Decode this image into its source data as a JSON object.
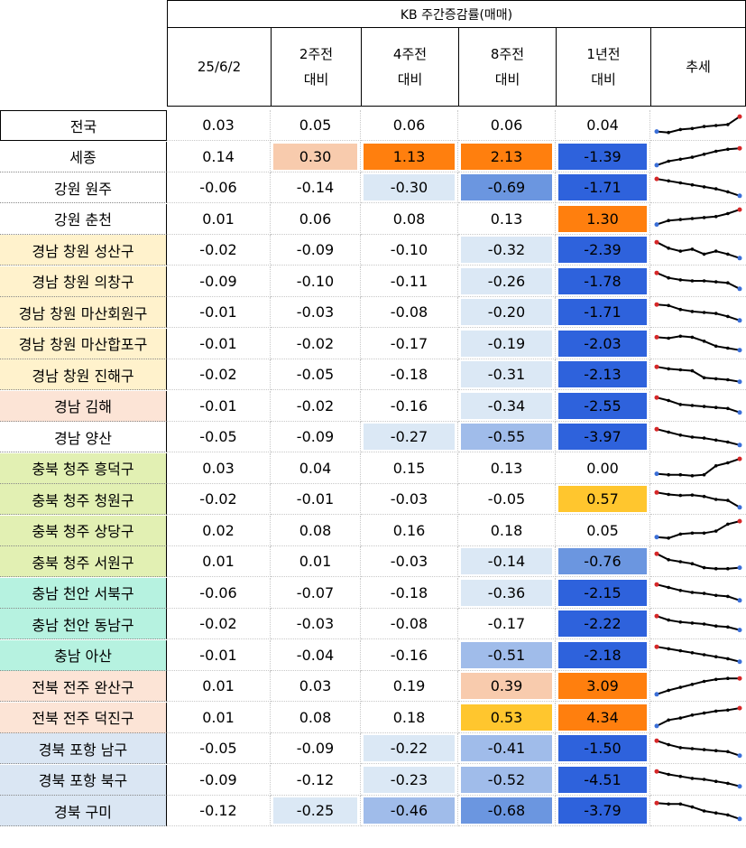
{
  "table": {
    "group_header": "KB 주간증감률(매매)",
    "columns": [
      {
        "line1": "25/6/2",
        "line2": ""
      },
      {
        "line1": "2주전",
        "line2": "대비"
      },
      {
        "line1": "4주전",
        "line2": "대비"
      },
      {
        "line1": "8주전",
        "line2": "대비"
      },
      {
        "line1": "1년전",
        "line2": "대비"
      },
      {
        "line1": "추세",
        "line2": ""
      }
    ],
    "rows": [
      {
        "name": "전국",
        "name_bg": "#ffffff",
        "values": [
          "0.03",
          "0.05",
          "0.06",
          "0.06",
          "0.04"
        ],
        "bgs": [
          "#ffffff",
          "#ffffff",
          "#ffffff",
          "#ffffff",
          "#ffffff"
        ],
        "trend": [
          0.2,
          0.15,
          0.3,
          0.35,
          0.45,
          0.5,
          0.55,
          0.95
        ]
      },
      {
        "name": "세종",
        "name_bg": "#ffffff",
        "values": [
          "0.14",
          "0.30",
          "1.13",
          "2.13",
          "-1.39"
        ],
        "bgs": [
          "#ffffff",
          "#f8cbad",
          "#ff7f0e",
          "#ff7f0e",
          "#2e62dc"
        ],
        "trend": [
          0.05,
          0.25,
          0.35,
          0.45,
          0.6,
          0.75,
          0.85,
          0.9
        ]
      },
      {
        "name": "강원 원주",
        "name_bg": "#ffffff",
        "values": [
          "-0.06",
          "-0.14",
          "-0.30",
          "-0.69",
          "-1.71"
        ],
        "bgs": [
          "#ffffff",
          "#ffffff",
          "#dbe8f5",
          "#6b96e0",
          "#2e62dc"
        ],
        "trend": [
          0.95,
          0.85,
          0.75,
          0.65,
          0.55,
          0.45,
          0.3,
          0.1
        ]
      },
      {
        "name": "강원 춘천",
        "name_bg": "#ffffff",
        "values": [
          "0.01",
          "0.06",
          "0.08",
          "0.13",
          "1.30"
        ],
        "bgs": [
          "#ffffff",
          "#ffffff",
          "#ffffff",
          "#ffffff",
          "#ff7f0e"
        ],
        "trend": [
          0.2,
          0.4,
          0.45,
          0.5,
          0.55,
          0.6,
          0.75,
          0.95
        ]
      },
      {
        "name": "경남 창원 성산구",
        "name_bg": "#fff2cc",
        "values": [
          "-0.02",
          "-0.09",
          "-0.10",
          "-0.32",
          "-2.39"
        ],
        "bgs": [
          "#ffffff",
          "#ffffff",
          "#ffffff",
          "#dbe8f5",
          "#2e62dc"
        ],
        "trend": [
          0.9,
          0.6,
          0.45,
          0.55,
          0.3,
          0.45,
          0.3,
          0.1
        ]
      },
      {
        "name": "경남 창원 의창구",
        "name_bg": "#fff2cc",
        "values": [
          "-0.09",
          "-0.10",
          "-0.11",
          "-0.26",
          "-1.78"
        ],
        "bgs": [
          "#ffffff",
          "#ffffff",
          "#ffffff",
          "#dbe8f5",
          "#2e62dc"
        ],
        "trend": [
          0.9,
          0.65,
          0.55,
          0.5,
          0.5,
          0.45,
          0.4,
          0.1
        ]
      },
      {
        "name": "경남 창원 마산회원구",
        "name_bg": "#fff2cc",
        "values": [
          "-0.01",
          "-0.03",
          "-0.08",
          "-0.20",
          "-1.71"
        ],
        "bgs": [
          "#ffffff",
          "#ffffff",
          "#ffffff",
          "#dbe8f5",
          "#2e62dc"
        ],
        "trend": [
          0.9,
          0.85,
          0.65,
          0.55,
          0.5,
          0.45,
          0.3,
          0.1
        ]
      },
      {
        "name": "경남 창원 마산합포구",
        "name_bg": "#fff2cc",
        "values": [
          "-0.01",
          "-0.02",
          "-0.17",
          "-0.19",
          "-2.03"
        ],
        "bgs": [
          "#ffffff",
          "#ffffff",
          "#ffffff",
          "#dbe8f5",
          "#2e62dc"
        ],
        "trend": [
          0.8,
          0.75,
          0.85,
          0.8,
          0.6,
          0.35,
          0.25,
          0.15
        ]
      },
      {
        "name": "경남 창원 진해구",
        "name_bg": "#fff2cc",
        "values": [
          "-0.02",
          "-0.05",
          "-0.18",
          "-0.31",
          "-2.13"
        ],
        "bgs": [
          "#ffffff",
          "#ffffff",
          "#ffffff",
          "#dbe8f5",
          "#2e62dc"
        ],
        "trend": [
          0.9,
          0.8,
          0.75,
          0.7,
          0.35,
          0.3,
          0.25,
          0.15
        ]
      },
      {
        "name": "경남 김해",
        "name_bg": "#fce4d6",
        "values": [
          "-0.01",
          "-0.02",
          "-0.16",
          "-0.34",
          "-2.55"
        ],
        "bgs": [
          "#ffffff",
          "#ffffff",
          "#ffffff",
          "#dbe8f5",
          "#2e62dc"
        ],
        "trend": [
          0.9,
          0.75,
          0.55,
          0.5,
          0.45,
          0.4,
          0.35,
          0.15
        ]
      },
      {
        "name": "경남 양산",
        "name_bg": "#ffffff",
        "values": [
          "-0.05",
          "-0.09",
          "-0.27",
          "-0.55",
          "-3.97"
        ],
        "bgs": [
          "#ffffff",
          "#ffffff",
          "#dbe8f5",
          "#a0bcea",
          "#2e62dc"
        ],
        "trend": [
          0.9,
          0.75,
          0.6,
          0.5,
          0.45,
          0.35,
          0.25,
          0.1
        ]
      },
      {
        "name": "충북 청주 흥덕구",
        "name_bg": "#e2f0b3",
        "values": [
          "0.03",
          "0.04",
          "0.15",
          "0.13",
          "0.00"
        ],
        "bgs": [
          "#ffffff",
          "#ffffff",
          "#ffffff",
          "#ffffff",
          "#ffffff"
        ],
        "trend": [
          0.2,
          0.15,
          0.15,
          0.1,
          0.15,
          0.6,
          0.75,
          0.95
        ]
      },
      {
        "name": "충북 청주 청원구",
        "name_bg": "#e2f0b3",
        "values": [
          "-0.02",
          "-0.01",
          "-0.03",
          "-0.05",
          "0.57"
        ],
        "bgs": [
          "#ffffff",
          "#ffffff",
          "#ffffff",
          "#ffffff",
          "#ffc62e"
        ],
        "trend": [
          0.85,
          0.75,
          0.7,
          0.72,
          0.65,
          0.5,
          0.45,
          0.1
        ]
      },
      {
        "name": "충북 청주 상당구",
        "name_bg": "#e2f0b3",
        "values": [
          "0.02",
          "0.08",
          "0.16",
          "0.18",
          "0.05"
        ],
        "bgs": [
          "#ffffff",
          "#ffffff",
          "#ffffff",
          "#ffffff",
          "#ffffff"
        ],
        "trend": [
          0.15,
          0.1,
          0.3,
          0.35,
          0.35,
          0.45,
          0.8,
          0.95
        ]
      },
      {
        "name": "충북 청주 서원구",
        "name_bg": "#e2f0b3",
        "values": [
          "0.01",
          "0.01",
          "-0.03",
          "-0.14",
          "-0.76"
        ],
        "bgs": [
          "#ffffff",
          "#ffffff",
          "#ffffff",
          "#dbe8f5",
          "#6b96e0"
        ],
        "trend": [
          0.9,
          0.6,
          0.5,
          0.4,
          0.2,
          0.15,
          0.15,
          0.2
        ]
      },
      {
        "name": "충남 천안 서북구",
        "name_bg": "#b6f2e0",
        "values": [
          "-0.06",
          "-0.07",
          "-0.18",
          "-0.36",
          "-2.15"
        ],
        "bgs": [
          "#ffffff",
          "#ffffff",
          "#ffffff",
          "#dbe8f5",
          "#2e62dc"
        ],
        "trend": [
          0.9,
          0.75,
          0.6,
          0.5,
          0.45,
          0.35,
          0.3,
          0.1
        ]
      },
      {
        "name": "충남 천안 동남구",
        "name_bg": "#b6f2e0",
        "values": [
          "-0.02",
          "-0.03",
          "-0.08",
          "-0.17",
          "-2.22"
        ],
        "bgs": [
          "#ffffff",
          "#ffffff",
          "#ffffff",
          "#ffffff",
          "#2e62dc"
        ],
        "trend": [
          0.9,
          0.7,
          0.6,
          0.55,
          0.5,
          0.4,
          0.35,
          0.2
        ]
      },
      {
        "name": "충남 아산",
        "name_bg": "#b6f2e0",
        "values": [
          "-0.01",
          "-0.04",
          "-0.16",
          "-0.51",
          "-2.18"
        ],
        "bgs": [
          "#ffffff",
          "#ffffff",
          "#ffffff",
          "#a0bcea",
          "#2e62dc"
        ],
        "trend": [
          0.9,
          0.8,
          0.7,
          0.6,
          0.5,
          0.4,
          0.3,
          0.15
        ]
      },
      {
        "name": "전북 전주 완산구",
        "name_bg": "#fce4d6",
        "values": [
          "0.01",
          "0.03",
          "0.19",
          "0.39",
          "3.09"
        ],
        "bgs": [
          "#ffffff",
          "#ffffff",
          "#ffffff",
          "#f8cbad",
          "#ff7f0e"
        ],
        "trend": [
          0.1,
          0.3,
          0.45,
          0.6,
          0.75,
          0.85,
          0.9,
          0.9
        ]
      },
      {
        "name": "전북 전주 덕진구",
        "name_bg": "#fce4d6",
        "values": [
          "0.01",
          "0.08",
          "0.18",
          "0.53",
          "4.34"
        ],
        "bgs": [
          "#ffffff",
          "#ffffff",
          "#ffffff",
          "#ffc62e",
          "#ff7f0e"
        ],
        "trend": [
          0.05,
          0.35,
          0.45,
          0.6,
          0.7,
          0.8,
          0.85,
          0.95
        ]
      },
      {
        "name": "경북 포항 남구",
        "name_bg": "#dae6f3",
        "values": [
          "-0.05",
          "-0.09",
          "-0.22",
          "-0.41",
          "-1.50"
        ],
        "bgs": [
          "#ffffff",
          "#ffffff",
          "#dbe8f5",
          "#a0bcea",
          "#2e62dc"
        ],
        "trend": [
          0.9,
          0.7,
          0.55,
          0.5,
          0.45,
          0.4,
          0.35,
          0.15
        ]
      },
      {
        "name": "경북 포항 북구",
        "name_bg": "#dae6f3",
        "values": [
          "-0.09",
          "-0.12",
          "-0.23",
          "-0.52",
          "-4.51"
        ],
        "bgs": [
          "#ffffff",
          "#ffffff",
          "#dbe8f5",
          "#a0bcea",
          "#2e62dc"
        ],
        "trend": [
          0.9,
          0.75,
          0.65,
          0.55,
          0.5,
          0.4,
          0.3,
          0.15
        ]
      },
      {
        "name": "경북 구미",
        "name_bg": "#dae6f3",
        "values": [
          "-0.12",
          "-0.25",
          "-0.46",
          "-0.68",
          "-3.79"
        ],
        "bgs": [
          "#ffffff",
          "#dbe8f5",
          "#a0bcea",
          "#6b96e0",
          "#2e62dc"
        ],
        "trend": [
          0.9,
          0.85,
          0.85,
          0.7,
          0.5,
          0.4,
          0.3,
          0.1
        ]
      }
    ]
  },
  "colors": {
    "trend_line": "#000000",
    "trend_start_marker": "#d62728",
    "trend_end_marker": "#3b6fd8"
  }
}
